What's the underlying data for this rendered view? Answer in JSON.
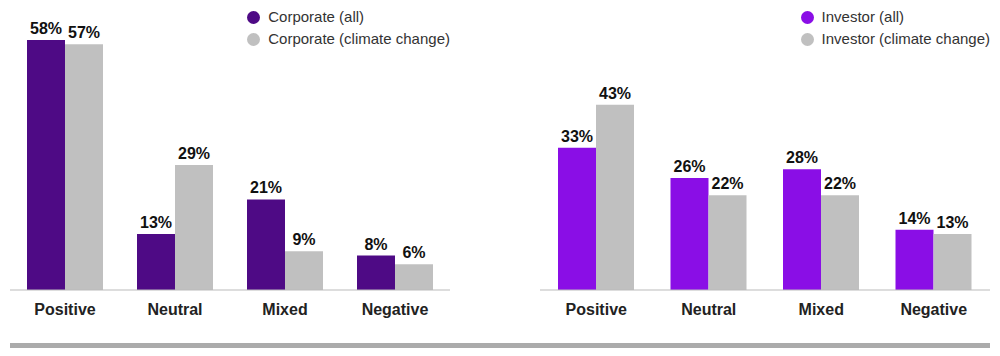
{
  "chart_data": [
    {
      "type": "bar",
      "categories": [
        "Positive",
        "Neutral",
        "Mixed",
        "Negative"
      ],
      "series": [
        {
          "name": "Corporate (all)",
          "color": "#4e0a85",
          "values": [
            58,
            13,
            21,
            8
          ],
          "value_labels": [
            "58%",
            "13%",
            "21%",
            "8%"
          ]
        },
        {
          "name": "Corporate (climate change)",
          "color": "#c0c0c0",
          "values": [
            57,
            29,
            9,
            6
          ],
          "value_labels": [
            "57%",
            "29%",
            "9%",
            "6%"
          ]
        }
      ],
      "data_labels": true,
      "tick_labels": "x",
      "legend": "upper right"
    },
    {
      "type": "bar",
      "categories": [
        "Positive",
        "Neutral",
        "Mixed",
        "Negative"
      ],
      "series": [
        {
          "name": "Investor (all)",
          "color": "#8a0ee6",
          "values": [
            33,
            26,
            28,
            14
          ],
          "value_labels": [
            "33%",
            "26%",
            "28%",
            "14%"
          ]
        },
        {
          "name": "Investor (climate change)",
          "color": "#c0c0c0",
          "values": [
            43,
            22,
            22,
            13
          ],
          "value_labels": [
            "43%",
            "22%",
            "22%",
            "13%"
          ]
        }
      ],
      "data_labels": true,
      "tick_labels": "x",
      "legend": "upper right"
    }
  ]
}
